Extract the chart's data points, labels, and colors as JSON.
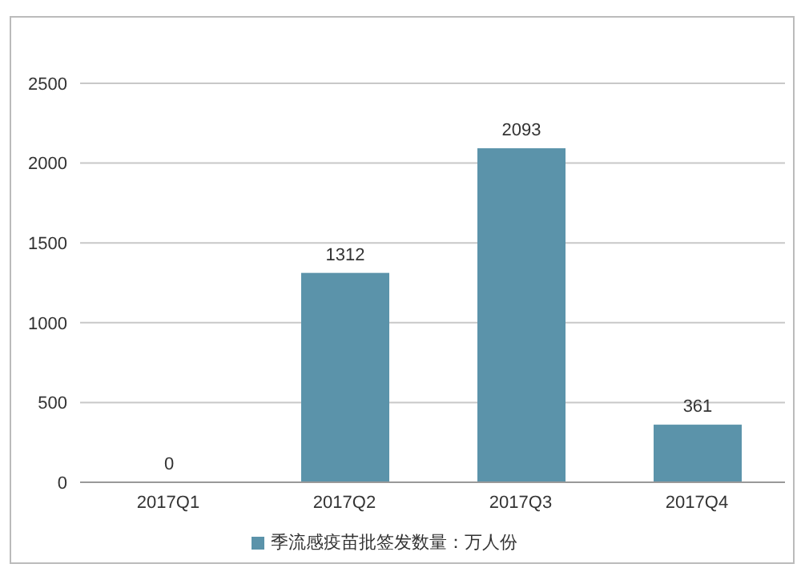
{
  "chart_data": {
    "type": "bar",
    "categories": [
      "2017Q1",
      "2017Q2",
      "2017Q3",
      "2017Q4"
    ],
    "series": [
      {
        "name": "季流感疫苗批签发数量：万人份",
        "color": "#5b93aa",
        "values": [
          0,
          1312,
          2093,
          361
        ]
      }
    ],
    "ylim": [
      0,
      2500
    ],
    "yticks": [
      0,
      500,
      1000,
      1500,
      2000,
      2500
    ],
    "grid": "y",
    "legend": "bottom",
    "data_labels": true
  }
}
